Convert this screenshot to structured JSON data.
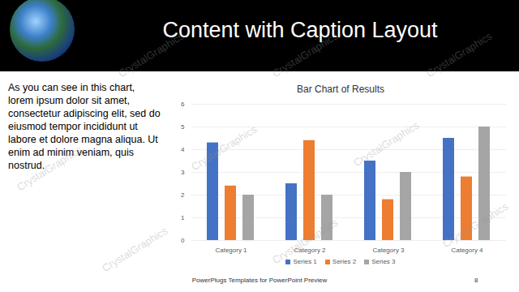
{
  "slide": {
    "title": "Content with Caption Layout",
    "caption": "As you can see in this chart, lorem ipsum dolor sit amet, consectetur adipiscing elit, sed do eiusmod tempor incididunt ut labore et dolore magna aliqua. Ut enim ad minim veniam, quis nostrud.",
    "footer": "PowerPlugs Templates for PowerPoint Preview",
    "page": "8",
    "watermark": "CrystalGraphics"
  },
  "chart_data": {
    "type": "bar",
    "title": "Bar Chart of Results",
    "categories": [
      "Category 1",
      "Category 2",
      "Category 3",
      "Category 4"
    ],
    "series": [
      {
        "name": "Series 1",
        "color": "#4472c4",
        "values": [
          4.3,
          2.5,
          3.5,
          4.5
        ]
      },
      {
        "name": "Series 2",
        "color": "#ed7d31",
        "values": [
          2.4,
          4.4,
          1.8,
          2.8
        ]
      },
      {
        "name": "Series 3",
        "color": "#a5a5a5",
        "values": [
          2.0,
          2.0,
          3.0,
          5.0
        ]
      }
    ],
    "ylim": [
      0,
      6
    ],
    "yticks": [
      0,
      1,
      2,
      3,
      4,
      5,
      6
    ],
    "grid": true,
    "legend": "bottom"
  }
}
